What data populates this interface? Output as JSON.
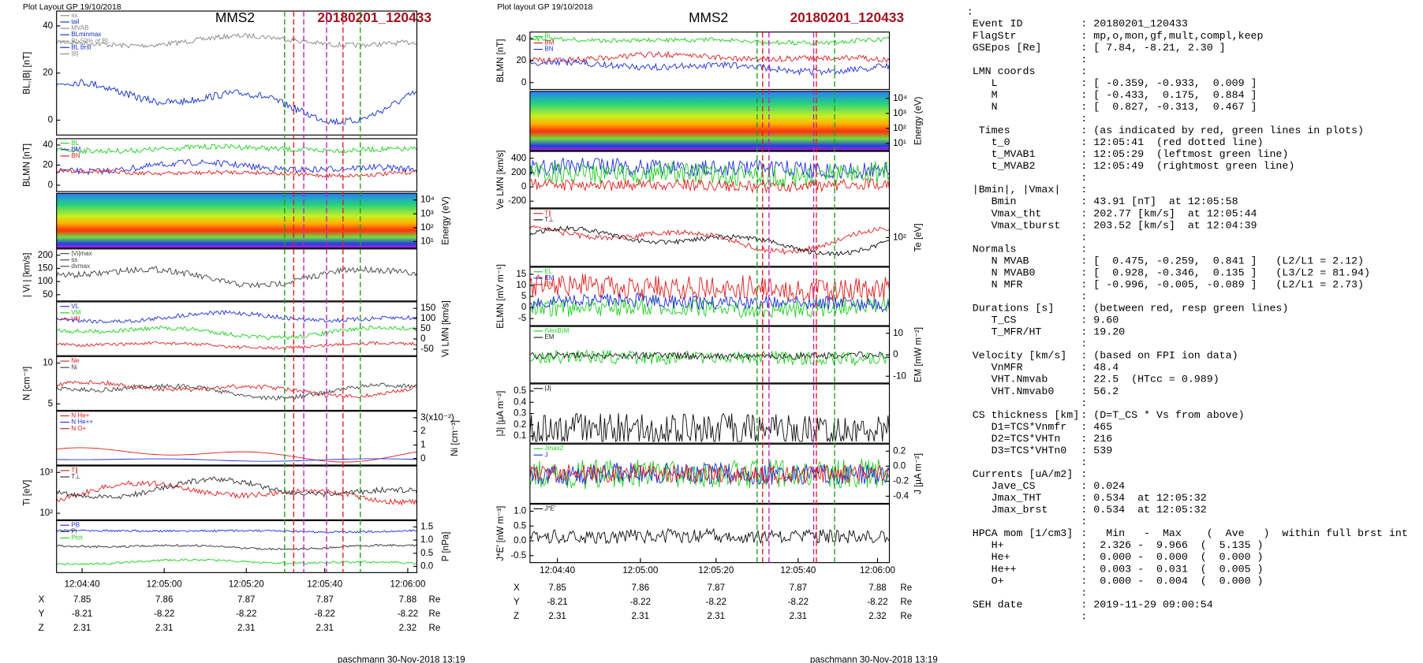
{
  "left_plot": {
    "header": "Plot Layout GP 19/10/2018",
    "title": "MMS2",
    "event": "20180201_120433",
    "footer": "paschmann 30-Nov-2018 13:19",
    "panels": [
      {
        "ylabel": "BL,|B| [nT]",
        "yticks": [
          "40",
          "20",
          "0"
        ],
        "legend": [
          "ss",
          "tail",
          "MVAB",
          "BLminmax",
          "BL 50% of BL",
          "BL brst",
          "|B|"
        ]
      },
      {
        "ylabel": "BLMN [nT]",
        "yticks": [
          "40",
          "20",
          "0"
        ],
        "legend": [
          "BL",
          "BM",
          "BN"
        ]
      },
      {
        "y2label": "Energy (eV)",
        "y2ticks": [
          "10⁴",
          "10³",
          "10²",
          "10¹"
        ]
      },
      {
        "ylabel": "| Vi | [km/s]",
        "yticks": [
          "200",
          "150",
          "100",
          "50"
        ],
        "legend": [
          "|Vi|max",
          "ss",
          "dvmax"
        ]
      },
      {
        "y2label": "Vi LMN [km/s]",
        "y2ticks": [
          "150",
          "100",
          "50",
          "0",
          "-50"
        ],
        "legend": [
          "VL",
          "VM",
          "VN"
        ]
      },
      {
        "ylabel": "N [cm⁻³]",
        "yticks": [
          "10",
          "5"
        ],
        "legend": [
          "Ne",
          "Ni"
        ]
      },
      {
        "y2label": "Ni [cm⁻³]",
        "y2ticks": [
          "3(x10⁻²)",
          "2",
          "1",
          "0"
        ],
        "legend": [
          "N He+",
          "N He++",
          "N O+"
        ]
      },
      {
        "ylabel": "Ti [eV]",
        "yticks": [
          "10³",
          "10²"
        ],
        "legend": [
          "T∥",
          "T⊥"
        ]
      },
      {
        "y2label": "P [nPa]",
        "y2ticks": [
          "1.5",
          "1.0",
          "0.5",
          "0.0"
        ],
        "legend": [
          "PB",
          "Pi",
          "Ptot"
        ]
      }
    ],
    "time_ticks": [
      "12:04:40",
      "12:05:00",
      "12:05:20",
      "12:05:40",
      "12:06:00"
    ],
    "coords": [
      {
        "label": "X",
        "values": [
          "7.85",
          "7.86",
          "7.87",
          "7.87",
          "7.88"
        ],
        "unit": "Re"
      },
      {
        "label": "Y",
        "values": [
          "-8.21",
          "-8.22",
          "-8.22",
          "-8.22",
          "-8.22"
        ],
        "unit": "Re"
      },
      {
        "label": "Z",
        "values": [
          "2.31",
          "2.31",
          "2.31",
          "2.31",
          "2.32"
        ],
        "unit": "Re"
      }
    ]
  },
  "right_plot": {
    "header": "Plot layout GP 19/10/2018",
    "title": "MMS2",
    "event": "20180201_120433",
    "footer": "paschmann 30-Nov-2018 13:19",
    "panels": [
      {
        "ylabel": "BLMN [nT]",
        "yticks": [
          "40",
          "20",
          "0"
        ],
        "legend": [
          "BL",
          "BM",
          "BN"
        ]
      },
      {
        "y2label": "Energy (eV)",
        "y2ticks": [
          "10⁴",
          "10³",
          "10²",
          "10¹"
        ]
      },
      {
        "ylabel": "Ve LMN [km/s]",
        "yticks": [
          "400",
          "200",
          "0",
          "-200"
        ]
      },
      {
        "y2label": "Te [eV]",
        "y2ticks": [
          "10²"
        ],
        "legend": [
          "T∥",
          "T⊥"
        ]
      },
      {
        "ylabel": "ELMN [mV m⁻¹]",
        "yticks": [
          "15",
          "10",
          "5",
          "0",
          "-5"
        ],
        "legend": [
          "EL",
          "EM",
          "EN"
        ]
      },
      {
        "y2label": "EM [mW m⁻²]",
        "y2ticks": [
          "10",
          "0",
          "-10"
        ],
        "legend": [
          "(VexB)M",
          "EM"
        ]
      },
      {
        "ylabel": "|J| [µA m⁻²]",
        "yticks": [
          "0.5",
          "0.4",
          "0.3",
          "0.2",
          "0.1"
        ],
        "legend": [
          "|J|"
        ]
      },
      {
        "y2label": "J [µA m⁻²]",
        "y2ticks": [
          "0.2",
          "0.0",
          "-0.2",
          "-0.4"
        ],
        "legend": [
          "Jmax2",
          "J"
        ]
      },
      {
        "ylabel": "J*E' [nW m⁻³]",
        "yticks": [
          "1.0",
          "0.5",
          "0.0",
          "-0.5"
        ],
        "legend": [
          "J*E'"
        ]
      }
    ],
    "time_ticks": [
      "12:04:40",
      "12:05:00",
      "12:05:20",
      "12:05:40",
      "12:06:00"
    ],
    "coords": [
      {
        "label": "X",
        "values": [
          "7.85",
          "7.86",
          "7.87",
          "7.87",
          "7.88"
        ],
        "unit": "Re"
      },
      {
        "label": "Y",
        "values": [
          "-8.21",
          "-8.22",
          "-8.22",
          "-8.22",
          "-8.22"
        ],
        "unit": "Re"
      },
      {
        "label": "Z",
        "values": [
          "2.31",
          "2.31",
          "2.31",
          "2.31",
          "2.32"
        ],
        "unit": "Re"
      }
    ]
  },
  "summary": {
    "lines": [
      {
        "key": ":"
      },
      {
        "key": "Event ID",
        "value": ": 20180201_120433"
      },
      {
        "key": "FlagStr",
        "value": ": mp,o,mon,gf,mult,compl,keep"
      },
      {
        "key": "GSEpos [Re]",
        "value": ": [ 7.84, -8.21, 2.30 ]"
      },
      {
        "value": ":"
      },
      {
        "key": "LMN coords",
        "value": ":"
      },
      {
        "key": "   L",
        "value": ": [ -0.359, -0.933,  0.009 ]"
      },
      {
        "key": "   M",
        "value": ": [ -0.433,  0.175,  0.884 ]"
      },
      {
        "key": "   N",
        "value": ": [  0.827, -0.313,  0.467 ]"
      },
      {
        "value": ":"
      },
      {
        "key": " Times",
        "value": ": (as indicated by red, green lines in plots)"
      },
      {
        "key": "   t_0",
        "value": ": 12:05:41  (red dotted line)"
      },
      {
        "key": "   t_MVAB1",
        "value": ": 12:05:29  (leftmost green line)"
      },
      {
        "key": "   t_MVAB2",
        "value": ": 12:05:49  (rightmost green line)"
      },
      {
        "value": ":"
      },
      {
        "key": "|Bmin|, |Vmax|",
        "value": ":"
      },
      {
        "key": "   Bmin",
        "value": ": 43.91 [nT]  at 12:05:58"
      },
      {
        "key": "   Vmax_tht",
        "value": ": 202.77 [km/s]  at 12:05:44"
      },
      {
        "key": "   Vmax_tburst",
        "value": ": 203.52 [km/s]  at 12:04:39"
      },
      {
        "value": ":"
      },
      {
        "key": "Normals",
        "value": ":"
      },
      {
        "key": "   N MVAB",
        "value": ": [  0.475, -0.259,  0.841 ]   (L2/L1 = 2.12)"
      },
      {
        "key": "   N MVAB0",
        "value": ": [  0.928, -0.346,  0.135 ]   (L3/L2 = 81.94)"
      },
      {
        "key": "   N MFR",
        "value": ": [ -0.996, -0.005, -0.089 ]   (L2/L1 = 2.73)"
      },
      {
        "value": ":"
      },
      {
        "key": "Durations [s]",
        "value": ": (between red, resp green lines)"
      },
      {
        "key": "   T_CS",
        "value": ": 9.60"
      },
      {
        "key": "   T_MFR/HT",
        "value": ": 19.20"
      },
      {
        "value": ":"
      },
      {
        "key": "Velocity [km/s]",
        "value": ": (based on FPI ion data)"
      },
      {
        "key": "   VnMFR",
        "value": ": 48.4"
      },
      {
        "key": "   VHT.Nmvab",
        "value": ": 22.5  (HTcc = 0.989)"
      },
      {
        "key": "   VHT.Nmvab0",
        "value": ": 56.2"
      },
      {
        "value": ":"
      },
      {
        "key": "CS thickness [km]",
        "value": ": (D=T_CS * Vs from above)"
      },
      {
        "key": "   D1=TCS*Vnmfr",
        "value": ": 465"
      },
      {
        "key": "   D2=TCS*VHTn",
        "value": ": 216"
      },
      {
        "key": "   D3=TCS*VHTn0",
        "value": ": 539"
      },
      {
        "value": ":"
      },
      {
        "key": "Currents [uA/m2]",
        "value": ":"
      },
      {
        "key": "   Jave_CS",
        "value": ": 0.024"
      },
      {
        "key": "   Jmax_THT",
        "value": ": 0.534  at 12:05:32"
      },
      {
        "key": "   Jmax_brst",
        "value": ": 0.534  at 12:05:32"
      },
      {
        "value": ":"
      },
      {
        "key": "HPCA mom [1/cm3]",
        "value": ":   Min   -  Max    (  Ave   )  within full brst int"
      },
      {
        "key": "   H+",
        "value": ":  2.326 -  9.966  (  5.135 )"
      },
      {
        "key": "   He+",
        "value": ":  0.000 -  0.000  (  0.000 )"
      },
      {
        "key": "   He++",
        "value": ":  0.003 -  0.031  (  0.005 )"
      },
      {
        "key": "   O+",
        "value": ":  0.000 -  0.004  (  0.000 )"
      },
      {
        "value": ":"
      },
      {
        "key": "SEH date",
        "value": ": 2019-11-29 09:00:54"
      },
      {
        "value": ":"
      }
    ]
  }
}
